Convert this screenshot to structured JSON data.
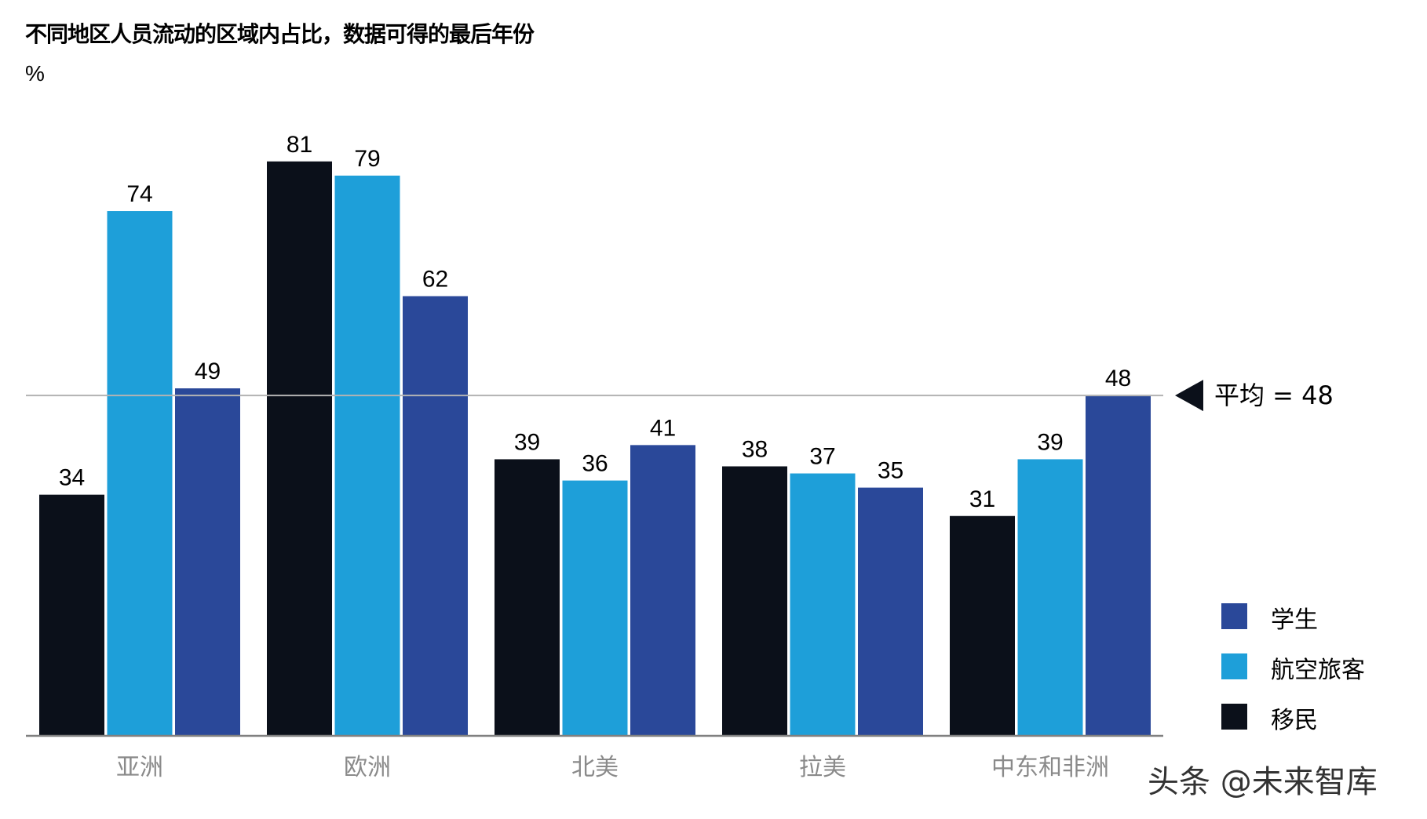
{
  "chart_data": {
    "type": "bar",
    "title": "不同地区人员流动的区域内占比，数据可得的最后年份",
    "ylabel": "%",
    "categories": [
      "亚洲",
      "欧洲",
      "北美",
      "拉美",
      "中东和非洲"
    ],
    "series": [
      {
        "name": "移民",
        "color": "#0b101a",
        "values": [
          34,
          81,
          39,
          38,
          31
        ]
      },
      {
        "name": "航空旅客",
        "color": "#1e9fd9",
        "values": [
          74,
          79,
          36,
          37,
          39
        ]
      },
      {
        "name": "学生",
        "color": "#2a4899",
        "values": [
          49,
          62,
          41,
          35,
          48
        ]
      }
    ],
    "ylim": [
      0,
      100
    ],
    "grid": false,
    "legend_placement": "bottom-right",
    "legend_order": [
      "学生",
      "航空旅客",
      "移民"
    ],
    "reference_line": {
      "value": 48,
      "label": "平均 = 48",
      "color": "#b3b3b3"
    }
  },
  "watermark": "头条 @未来智库"
}
